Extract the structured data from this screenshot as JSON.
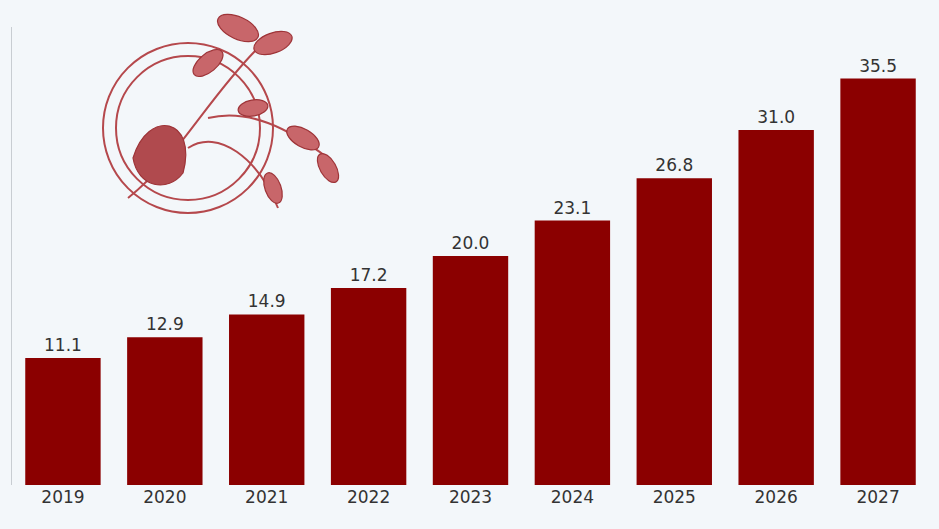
{
  "chart_data": {
    "type": "bar",
    "categories": [
      "2019",
      "2020",
      "2021",
      "2022",
      "2023",
      "2024",
      "2025",
      "2026",
      "2027"
    ],
    "values": [
      11.1,
      12.9,
      14.9,
      17.2,
      20.0,
      23.1,
      26.8,
      31.0,
      35.5
    ],
    "value_labels": [
      "11.1",
      "12.9",
      "14.9",
      "17.2",
      "20.0",
      "23.1",
      "26.8",
      "31.0",
      "35.5"
    ],
    "color": "#8b0000",
    "ylim": [
      0,
      40
    ],
    "grid": false,
    "data_labels": true,
    "tick_labels": "x"
  }
}
